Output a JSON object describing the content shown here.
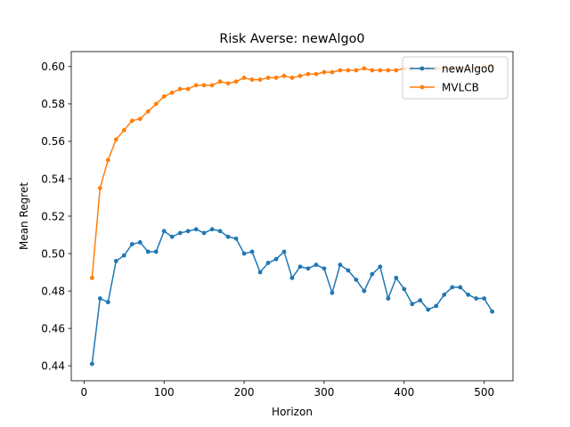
{
  "chart_data": {
    "type": "line",
    "title": "Risk Averse: newAlgo0",
    "xlabel": "Horizon",
    "ylabel": "Mean Regret",
    "xlim": [
      -16,
      536
    ],
    "ylim": [
      0.432,
      0.608
    ],
    "xticks": [
      0,
      100,
      200,
      300,
      400,
      500
    ],
    "yticks": [
      0.44,
      0.46,
      0.48,
      0.5,
      0.52,
      0.54,
      0.56,
      0.58,
      0.6
    ],
    "ytick_labels": [
      "0.44",
      "0.46",
      "0.48",
      "0.50",
      "0.52",
      "0.54",
      "0.56",
      "0.58",
      "0.60"
    ],
    "grid": false,
    "legend_position": "upper right",
    "x": [
      10,
      20,
      30,
      40,
      50,
      60,
      70,
      80,
      90,
      100,
      110,
      120,
      130,
      140,
      150,
      160,
      170,
      180,
      190,
      200,
      210,
      220,
      230,
      240,
      250,
      260,
      270,
      280,
      290,
      300,
      310,
      320,
      330,
      340,
      350,
      360,
      370,
      380,
      390,
      400,
      410,
      420,
      430,
      440,
      450,
      460,
      470,
      480,
      490,
      500,
      510
    ],
    "series": [
      {
        "name": "newAlgo0",
        "color": "#1f77b4",
        "values": [
          0.441,
          0.476,
          0.474,
          0.496,
          0.499,
          0.505,
          0.506,
          0.501,
          0.501,
          0.512,
          0.509,
          0.511,
          0.512,
          0.513,
          0.511,
          0.513,
          0.512,
          0.509,
          0.508,
          0.5,
          0.501,
          0.49,
          0.495,
          0.497,
          0.501,
          0.487,
          0.493,
          0.492,
          0.494,
          0.492,
          0.479,
          0.494,
          0.491,
          0.486,
          0.48,
          0.489,
          0.493,
          0.476,
          0.487,
          0.481,
          0.473,
          0.475,
          0.47,
          0.472,
          0.478,
          0.482,
          0.482,
          0.478,
          0.476,
          0.476,
          0.469
        ]
      },
      {
        "name": "MVLCB",
        "color": "#ff7f0e",
        "values": [
          0.487,
          0.535,
          0.55,
          0.561,
          0.566,
          0.571,
          0.572,
          0.576,
          0.58,
          0.584,
          0.586,
          0.588,
          0.588,
          0.59,
          0.59,
          0.59,
          0.592,
          0.591,
          0.592,
          0.594,
          0.593,
          0.593,
          0.594,
          0.594,
          0.595,
          0.594,
          0.595,
          0.596,
          0.596,
          0.597,
          0.597,
          0.598,
          0.598,
          0.598,
          0.599,
          0.598,
          0.598,
          0.598,
          0.598,
          0.599,
          0.599,
          0.599,
          0.599,
          0.599,
          0.599,
          0.599,
          0.599,
          0.599,
          0.599,
          0.6,
          0.6
        ]
      }
    ]
  }
}
